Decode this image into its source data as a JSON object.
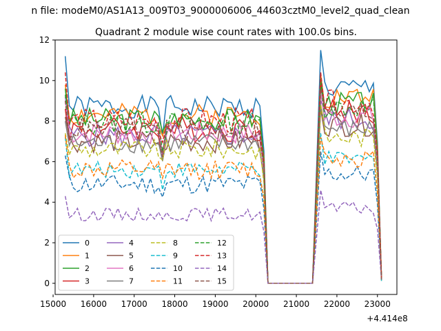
{
  "suptitle": "n file: modeM0/AS1A13_009T03_9000006006_44603cztM0_level2_quad_clean",
  "chart_data": {
    "type": "line",
    "title": "Quadrant 2 module wise count rates with 100.0s bins.",
    "xlabel": "",
    "ylabel": "",
    "x_offset_label": "+4.414e8",
    "xlim": [
      15050,
      23480
    ],
    "ylim": [
      -0.55,
      12.0
    ],
    "xticks": [
      15000,
      16000,
      17000,
      18000,
      19000,
      20000,
      21000,
      22000,
      23000
    ],
    "yticks": [
      0,
      2,
      4,
      6,
      8,
      10,
      12
    ],
    "grid": false,
    "legend_position": "lower-left",
    "legend_columns": 4,
    "x_segments": {
      "seg1": {
        "start": 15300,
        "end": 20200,
        "step": 100
      },
      "gap": {
        "start": 20300,
        "end": 21400,
        "value": 0
      },
      "seg2": {
        "start": 21600,
        "end": 23100,
        "step": 100
      }
    },
    "series": [
      {
        "name": "0",
        "color": "#1f77b4",
        "dash": "solid",
        "mean1": 8.7,
        "mean2": 9.6,
        "start1": 11.2,
        "start2": 11.5,
        "amp": 0.35,
        "seed": 1
      },
      {
        "name": "1",
        "color": "#ff7f0e",
        "dash": "solid",
        "mean1": 8.3,
        "mean2": 9.2,
        "start1": 9.8,
        "start2": 10.3,
        "amp": 0.35,
        "seed": 2
      },
      {
        "name": "2",
        "color": "#2ca02c",
        "dash": "solid",
        "mean1": 8.1,
        "mean2": 8.9,
        "start1": 9.6,
        "start2": 10.1,
        "amp": 0.35,
        "seed": 3
      },
      {
        "name": "3",
        "color": "#d62728",
        "dash": "solid",
        "mean1": 7.6,
        "mean2": 8.5,
        "start1": 8.6,
        "start2": 9.8,
        "amp": 0.4,
        "seed": 4
      },
      {
        "name": "4",
        "color": "#9467bd",
        "dash": "solid",
        "mean1": 7.3,
        "mean2": 8.1,
        "start1": 9.2,
        "start2": 9.0,
        "amp": 0.35,
        "seed": 5
      },
      {
        "name": "5",
        "color": "#8c564b",
        "dash": "solid",
        "mean1": 7.0,
        "mean2": 7.8,
        "start1": 8.2,
        "start2": 8.6,
        "amp": 0.35,
        "seed": 6
      },
      {
        "name": "6",
        "color": "#e377c2",
        "dash": "solid",
        "mean1": 7.4,
        "mean2": 8.2,
        "start1": 9.0,
        "start2": 9.4,
        "amp": 0.35,
        "seed": 7
      },
      {
        "name": "7",
        "color": "#7f7f7f",
        "dash": "solid",
        "mean1": 6.9,
        "mean2": 7.6,
        "start1": 8.0,
        "start2": 8.8,
        "amp": 0.3,
        "seed": 8
      },
      {
        "name": "8",
        "color": "#bcbd22",
        "dash": "dashed",
        "mean1": 6.6,
        "mean2": 7.2,
        "start1": 7.4,
        "start2": 8.8,
        "amp": 0.3,
        "seed": 9
      },
      {
        "name": "9",
        "color": "#17becf",
        "dash": "dashed",
        "mean1": 5.6,
        "mean2": 6.1,
        "start1": 7.2,
        "start2": 7.4,
        "amp": 0.25,
        "seed": 10
      },
      {
        "name": "10",
        "color": "#1f77b4",
        "dash": "dashed",
        "mean1": 4.9,
        "mean2": 5.4,
        "start1": 6.3,
        "start2": 6.5,
        "amp": 0.3,
        "seed": 11
      },
      {
        "name": "11",
        "color": "#ff7f0e",
        "dash": "dashed",
        "mean1": 5.6,
        "mean2": 6.2,
        "start1": 7.3,
        "start2": 7.2,
        "amp": 0.3,
        "seed": 12
      },
      {
        "name": "12",
        "color": "#2ca02c",
        "dash": "dashed",
        "mean1": 7.9,
        "mean2": 8.7,
        "start1": 9.3,
        "start2": 10.0,
        "amp": 0.35,
        "seed": 13
      },
      {
        "name": "13",
        "color": "#d62728",
        "dash": "dashed",
        "mean1": 8.0,
        "mean2": 8.9,
        "start1": 10.4,
        "start2": 10.4,
        "amp": 0.4,
        "seed": 14
      },
      {
        "name": "14",
        "color": "#9467bd",
        "dash": "dashed",
        "mean1": 3.4,
        "mean2": 3.7,
        "start1": 4.3,
        "start2": 4.6,
        "amp": 0.2,
        "seed": 15
      },
      {
        "name": "15",
        "color": "#8c564b",
        "dash": "dashed",
        "mean1": 7.6,
        "mean2": 8.4,
        "start1": 9.0,
        "start2": 9.6,
        "amp": 0.35,
        "seed": 16
      }
    ]
  }
}
